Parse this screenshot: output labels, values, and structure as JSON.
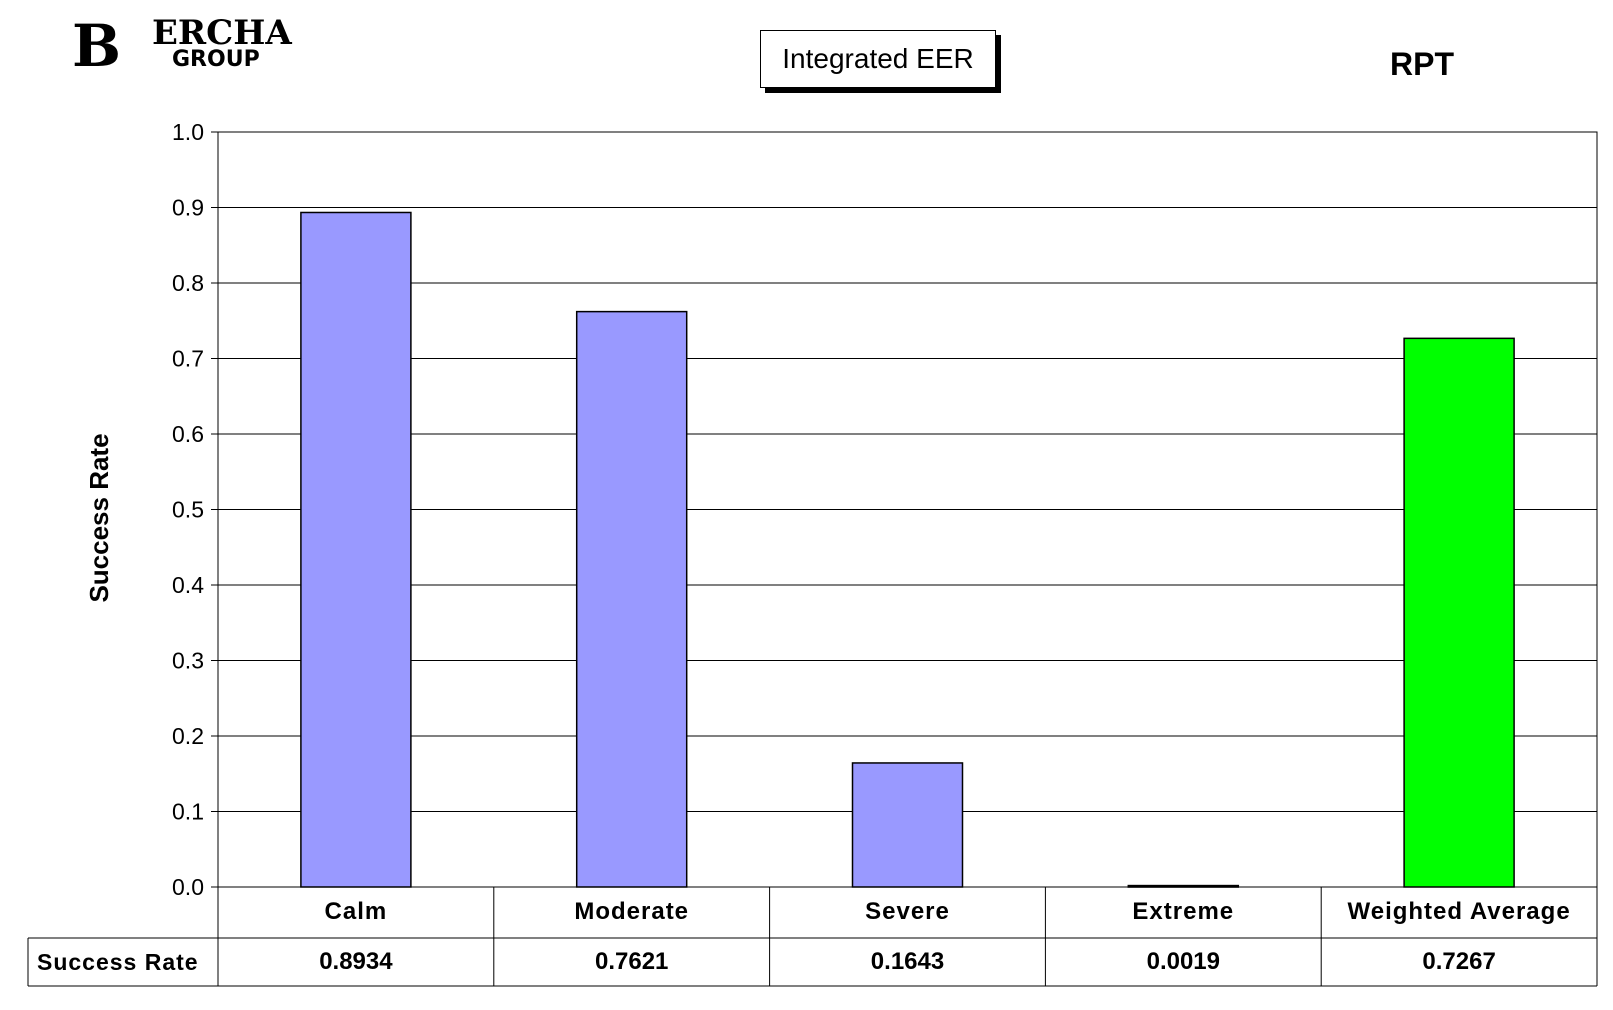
{
  "header": {
    "logo_main": "BERCHA",
    "logo_sub": "GROUP",
    "title": "Integrated EER",
    "label_right": "RPT"
  },
  "chart_data": {
    "type": "bar",
    "title": "Integrated EER",
    "ylabel": "Success Rate",
    "xlabel": "",
    "ylim": [
      0,
      1.0
    ],
    "yticks": [
      "0.0",
      "0.1",
      "0.2",
      "0.3",
      "0.4",
      "0.5",
      "0.6",
      "0.7",
      "0.8",
      "0.9",
      "1.0"
    ],
    "grid": true,
    "categories": [
      "Calm",
      "Moderate",
      "Severe",
      "Extreme",
      "Weighted Average"
    ],
    "series": [
      {
        "name": "Success Rate",
        "values": [
          0.8934,
          0.7621,
          0.1643,
          0.0019,
          0.7267
        ],
        "value_labels": [
          "0.8934",
          "0.7621",
          "0.1643",
          "0.0019",
          "0.7267"
        ],
        "colors": [
          "#9999ff",
          "#9999ff",
          "#9999ff",
          "#9999ff",
          "#00ff00"
        ]
      }
    ],
    "data_table": true
  }
}
